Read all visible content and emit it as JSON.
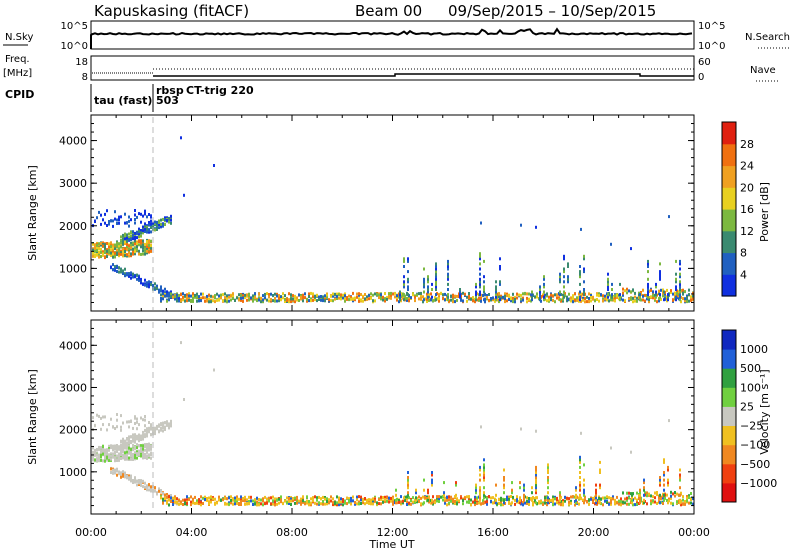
{
  "header": {
    "station": "Kapuskasing (fitACF)",
    "beam": "Beam 00",
    "date_range": "09/Sep/2015 – 10/Sep/2015"
  },
  "strips": {
    "nsky": {
      "label": "N.Sky",
      "left_ticks": [
        "10^5",
        "10^0"
      ],
      "right_label": "N.Search",
      "right_ticks": [
        "10^5",
        "10^0"
      ]
    },
    "freq": {
      "label_top": "Freq.",
      "label_unit": "[MHz]",
      "left_ticks": [
        "18",
        "8"
      ],
      "right_label": "Nave",
      "right_ticks": [
        "60",
        "0"
      ]
    },
    "cpid": {
      "label": "CPID",
      "segments": [
        "tau (fast)",
        "rbsp",
        "503",
        "CT-trig 220"
      ]
    }
  },
  "chart_data": [
    {
      "type": "heatmap",
      "title": "",
      "xlabel": "",
      "ylabel": "Slant Range [km]",
      "xlim": [
        "00:00",
        "00:00"
      ],
      "ylim": [
        0,
        4600
      ],
      "y_ticks": [
        1000,
        2000,
        3000,
        4000
      ],
      "colorbar": {
        "label": "Power [dB]",
        "ticks": [
          4,
          8,
          12,
          16,
          20,
          24,
          28
        ],
        "colors": [
          "#1030e0",
          "#2060c0",
          "#3a8a70",
          "#7cb840",
          "#e8d020",
          "#f0a020",
          "#f07010",
          "#e02010"
        ]
      }
    },
    {
      "type": "heatmap",
      "title": "",
      "xlabel": "Time UT",
      "ylabel": "Slant Range [km]",
      "xlim": [
        "00:00",
        "00:00"
      ],
      "ylim": [
        0,
        4600
      ],
      "y_ticks": [
        1000,
        2000,
        3000,
        4000
      ],
      "x_ticks": [
        "00:00",
        "04:00",
        "08:00",
        "12:00",
        "16:00",
        "20:00",
        "00:00"
      ],
      "colorbar": {
        "label": "Velocity [m s⁻¹]",
        "ticks": [
          "1000",
          "500",
          "100",
          "25",
          "−25",
          "−100",
          "−500",
          "−1000"
        ],
        "colors": [
          "#1028c0",
          "#2060d8",
          "#30a040",
          "#70d040",
          "#c8c8c0",
          "#f0c020",
          "#f08820",
          "#f04010",
          "#e01010"
        ]
      }
    }
  ]
}
